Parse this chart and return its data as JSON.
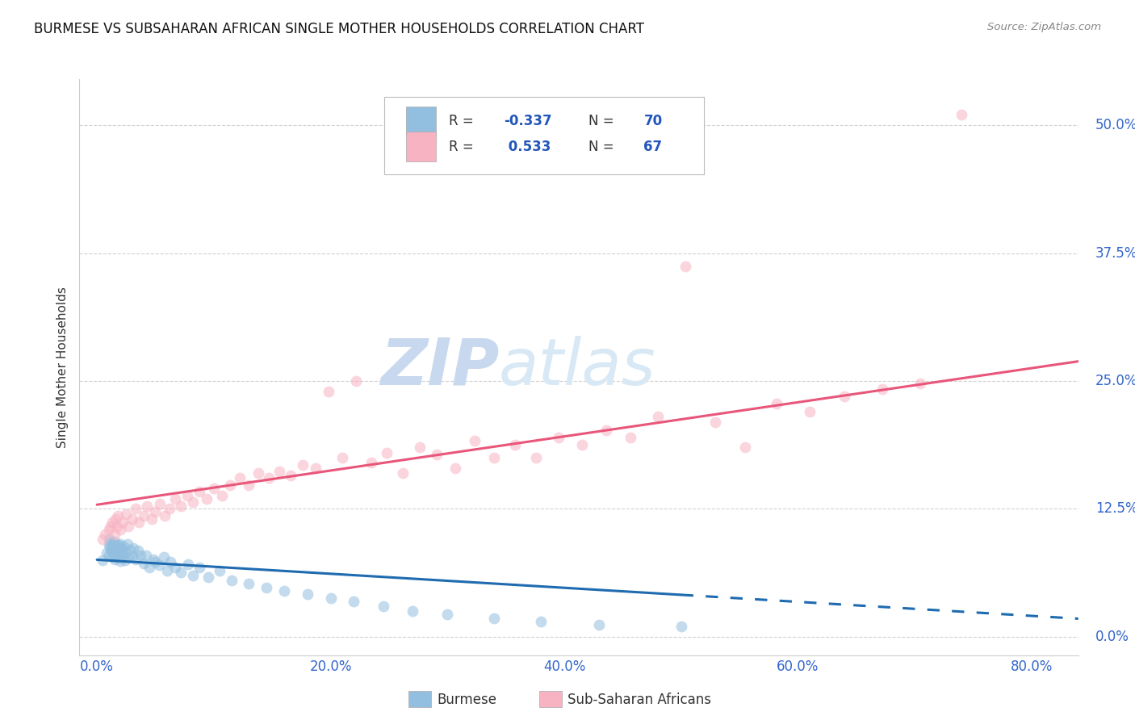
{
  "title": "BURMESE VS SUBSAHARAN AFRICAN SINGLE MOTHER HOUSEHOLDS CORRELATION CHART",
  "source": "Source: ZipAtlas.com",
  "xlabel_ticks": [
    "0.0%",
    "20.0%",
    "40.0%",
    "60.0%",
    "80.0%"
  ],
  "xlabel_tick_vals": [
    0.0,
    0.2,
    0.4,
    0.6,
    0.8
  ],
  "ylabel": "Single Mother Households",
  "ylabel_ticks": [
    "0.0%",
    "12.5%",
    "25.0%",
    "37.5%",
    "50.0%"
  ],
  "ylabel_tick_vals": [
    0.0,
    0.125,
    0.25,
    0.375,
    0.5
  ],
  "xlim": [
    -0.015,
    0.84
  ],
  "ylim": [
    -0.018,
    0.545
  ],
  "burmese_R": -0.337,
  "burmese_N": 70,
  "subsaharan_R": 0.533,
  "subsaharan_N": 67,
  "burmese_color": "#92bfdf",
  "subsaharan_color": "#f7b3c2",
  "burmese_line_color": "#1f6bb0",
  "subsaharan_line_color": "#e8567a",
  "watermark_zip": "ZIP",
  "watermark_atlas": "atlas",
  "watermark_color": "#dde8f5",
  "background_color": "#ffffff",
  "legend_R_color": "#2255bb",
  "legend_N_color": "#2255bb",
  "burmese_x": [
    0.005,
    0.008,
    0.01,
    0.01,
    0.01,
    0.011,
    0.012,
    0.012,
    0.013,
    0.013,
    0.014,
    0.014,
    0.015,
    0.015,
    0.015,
    0.016,
    0.016,
    0.017,
    0.017,
    0.018,
    0.018,
    0.019,
    0.02,
    0.02,
    0.02,
    0.021,
    0.021,
    0.022,
    0.023,
    0.023,
    0.024,
    0.025,
    0.026,
    0.027,
    0.028,
    0.03,
    0.031,
    0.033,
    0.035,
    0.037,
    0.04,
    0.042,
    0.045,
    0.048,
    0.05,
    0.053,
    0.057,
    0.06,
    0.063,
    0.067,
    0.072,
    0.078,
    0.082,
    0.088,
    0.095,
    0.105,
    0.115,
    0.13,
    0.145,
    0.16,
    0.18,
    0.2,
    0.22,
    0.245,
    0.27,
    0.3,
    0.34,
    0.38,
    0.43,
    0.5
  ],
  "burmese_y": [
    0.075,
    0.082,
    0.09,
    0.095,
    0.08,
    0.088,
    0.085,
    0.092,
    0.078,
    0.086,
    0.083,
    0.091,
    0.076,
    0.084,
    0.093,
    0.079,
    0.087,
    0.081,
    0.09,
    0.077,
    0.085,
    0.089,
    0.074,
    0.082,
    0.091,
    0.078,
    0.086,
    0.083,
    0.08,
    0.088,
    0.075,
    0.083,
    0.091,
    0.077,
    0.085,
    0.079,
    0.087,
    0.076,
    0.084,
    0.08,
    0.072,
    0.08,
    0.068,
    0.076,
    0.073,
    0.07,
    0.078,
    0.065,
    0.073,
    0.068,
    0.063,
    0.071,
    0.06,
    0.068,
    0.058,
    0.065,
    0.055,
    0.052,
    0.048,
    0.045,
    0.042,
    0.038,
    0.035,
    0.03,
    0.025,
    0.022,
    0.018,
    0.015,
    0.012,
    0.01
  ],
  "subsaharan_x": [
    0.005,
    0.007,
    0.01,
    0.012,
    0.013,
    0.015,
    0.016,
    0.017,
    0.018,
    0.02,
    0.022,
    0.025,
    0.027,
    0.03,
    0.033,
    0.036,
    0.04,
    0.043,
    0.047,
    0.05,
    0.054,
    0.058,
    0.062,
    0.067,
    0.072,
    0.077,
    0.082,
    0.088,
    0.094,
    0.1,
    0.107,
    0.114,
    0.122,
    0.13,
    0.138,
    0.147,
    0.156,
    0.166,
    0.176,
    0.187,
    0.198,
    0.21,
    0.222,
    0.235,
    0.248,
    0.262,
    0.276,
    0.291,
    0.307,
    0.323,
    0.34,
    0.358,
    0.376,
    0.395,
    0.415,
    0.436,
    0.457,
    0.48,
    0.504,
    0.529,
    0.555,
    0.582,
    0.61,
    0.64,
    0.672,
    0.705,
    0.74
  ],
  "subsaharan_y": [
    0.095,
    0.1,
    0.105,
    0.108,
    0.112,
    0.1,
    0.115,
    0.108,
    0.118,
    0.105,
    0.112,
    0.12,
    0.108,
    0.115,
    0.125,
    0.112,
    0.118,
    0.128,
    0.115,
    0.122,
    0.13,
    0.118,
    0.125,
    0.135,
    0.128,
    0.138,
    0.132,
    0.142,
    0.135,
    0.145,
    0.138,
    0.148,
    0.155,
    0.148,
    0.16,
    0.155,
    0.162,
    0.158,
    0.168,
    0.165,
    0.24,
    0.175,
    0.25,
    0.17,
    0.18,
    0.16,
    0.185,
    0.178,
    0.165,
    0.192,
    0.175,
    0.188,
    0.175,
    0.195,
    0.188,
    0.202,
    0.195,
    0.215,
    0.362,
    0.21,
    0.185,
    0.228,
    0.22,
    0.235,
    0.242,
    0.248,
    0.51
  ]
}
